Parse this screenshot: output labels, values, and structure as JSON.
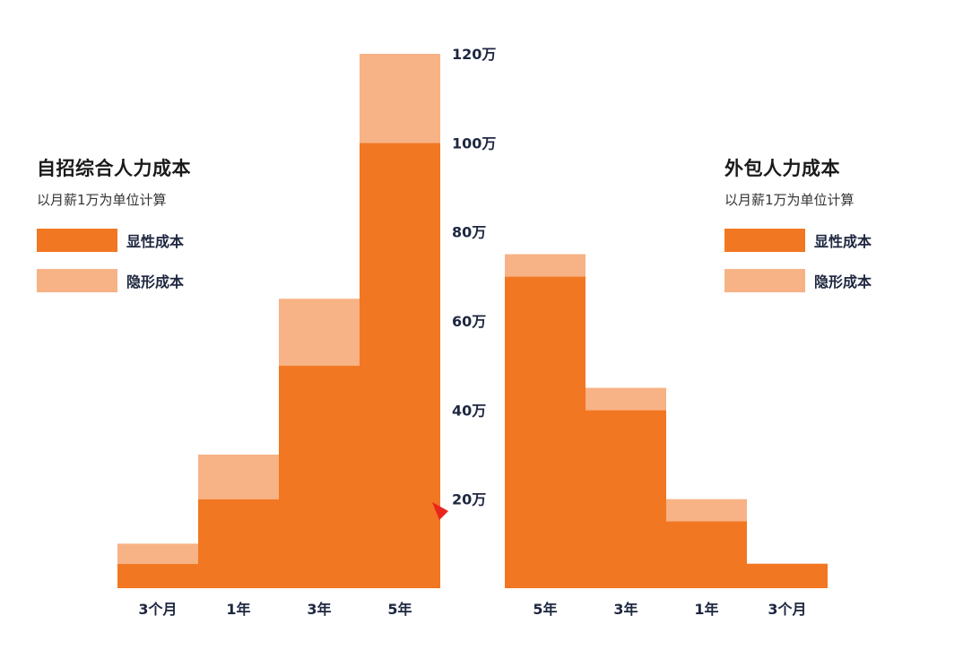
{
  "colors": {
    "explicit": "#f27722",
    "hidden": "#f7b386",
    "pointer": "#e8261c"
  },
  "legend_left": {
    "title": "自招综合人力成本",
    "subtitle": "以月薪1万为单位计算",
    "entries": [
      {
        "label": "显性成本",
        "color": "#f27722"
      },
      {
        "label": "隐形成本",
        "color": "#f7b386"
      }
    ]
  },
  "legend_right": {
    "title": "外包人力成本",
    "subtitle": "以月薪1万为单位计算",
    "entries": [
      {
        "label": "显性成本",
        "color": "#f27722"
      },
      {
        "label": "隐形成本",
        "color": "#f7b386"
      }
    ]
  },
  "chart_data": [
    {
      "type": "bar",
      "stacked": true,
      "title": "自招综合人力成本",
      "subtitle": "以月薪1万为单位计算",
      "categories": [
        "3个月",
        "1年",
        "3年",
        "5年"
      ],
      "series": [
        {
          "name": "显性成本",
          "color": "#f27722",
          "values": [
            5.5,
            20,
            50,
            100
          ]
        },
        {
          "name": "隐形成本",
          "color": "#f7b386",
          "values": [
            4.5,
            10,
            15,
            20
          ]
        }
      ],
      "unit": "万",
      "ylim": [
        0,
        120
      ],
      "y_ticks": [
        "20万",
        "40万",
        "60万",
        "80万",
        "100万",
        "120万"
      ],
      "y_tick_values": [
        20,
        40,
        60,
        80,
        100,
        120
      ],
      "grid": false,
      "legend": "left"
    },
    {
      "type": "bar",
      "stacked": true,
      "title": "外包人力成本",
      "subtitle": "以月薪1万为单位计算",
      "categories": [
        "5年",
        "3年",
        "1年",
        "3个月"
      ],
      "series": [
        {
          "name": "显性成本",
          "color": "#f27722",
          "values": [
            70,
            40,
            15,
            5.5
          ]
        },
        {
          "name": "隐形成本",
          "color": "#f7b386",
          "values": [
            5,
            5,
            5,
            0
          ]
        }
      ],
      "unit": "万",
      "ylim": [
        0,
        120
      ],
      "grid": false,
      "legend": "right"
    }
  ]
}
